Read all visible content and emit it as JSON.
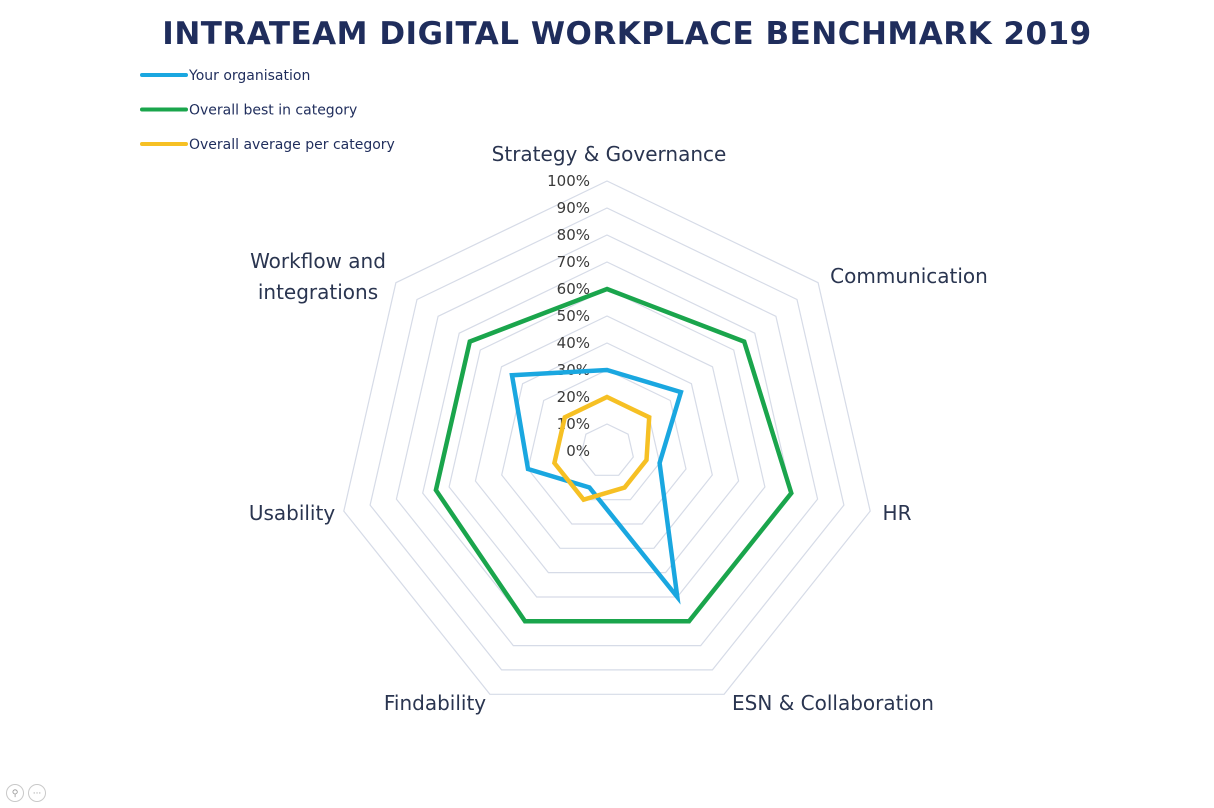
{
  "chart_data": {
    "type": "radar",
    "title": "INTRATEAM DIGITAL WORKPLACE BENCHMARK 2019",
    "categories": [
      "Strategy & Governance",
      "Communication",
      "HR",
      "ESN & Collaboration",
      "Findability",
      "Usability",
      "Workflow and integrations"
    ],
    "category_label_lines": [
      [
        "Strategy & Governance"
      ],
      [
        "Communication"
      ],
      [
        "HR"
      ],
      [
        "ESN & Collaboration"
      ],
      [
        "Findability"
      ],
      [
        "Usability"
      ],
      [
        "Workflow and",
        "integrations"
      ]
    ],
    "tick_labels": [
      "0%",
      "10%",
      "20%",
      "30%",
      "40%",
      "50%",
      "60%",
      "70%",
      "80%",
      "90%",
      "100%"
    ],
    "rlim": [
      0,
      100
    ],
    "series": [
      {
        "name": "Your organisation",
        "color": "#1aa7e0",
        "values": [
          30,
          35,
          20,
          60,
          15,
          30,
          45
        ]
      },
      {
        "name": "Overall best in category",
        "color": "#1aa54c",
        "values": [
          60,
          65,
          70,
          70,
          70,
          65,
          65
        ]
      },
      {
        "name": "Overall average per category",
        "color": "#f6c024",
        "values": [
          20,
          20,
          15,
          15,
          20,
          20,
          20
        ]
      }
    ],
    "legend_position": "top-left",
    "grid": true
  }
}
